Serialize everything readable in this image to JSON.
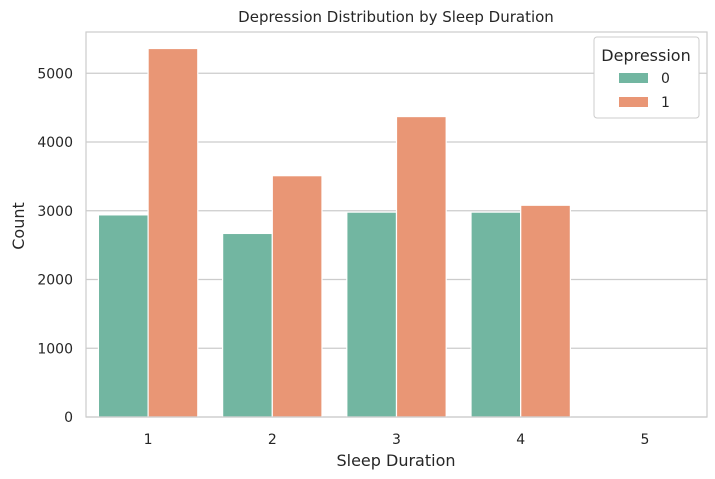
{
  "chart_data": {
    "type": "bar",
    "title": "Depression Distribution by Sleep Duration",
    "xlabel": "Sleep Duration",
    "ylabel": "Count",
    "categories": [
      "1",
      "2",
      "3",
      "4",
      "5"
    ],
    "series": [
      {
        "name": "0",
        "values": [
          2940,
          2670,
          2980,
          2980,
          0
        ],
        "color": "#72b6a1"
      },
      {
        "name": "1",
        "values": [
          5360,
          3510,
          4370,
          3080,
          0
        ],
        "color": "#e99675"
      }
    ],
    "ylim": [
      0,
      5600
    ],
    "yticks": [
      0,
      1000,
      2000,
      3000,
      4000,
      5000
    ],
    "grid": "horizontal",
    "legend": {
      "title": "Depression",
      "placement": "top-right"
    }
  }
}
